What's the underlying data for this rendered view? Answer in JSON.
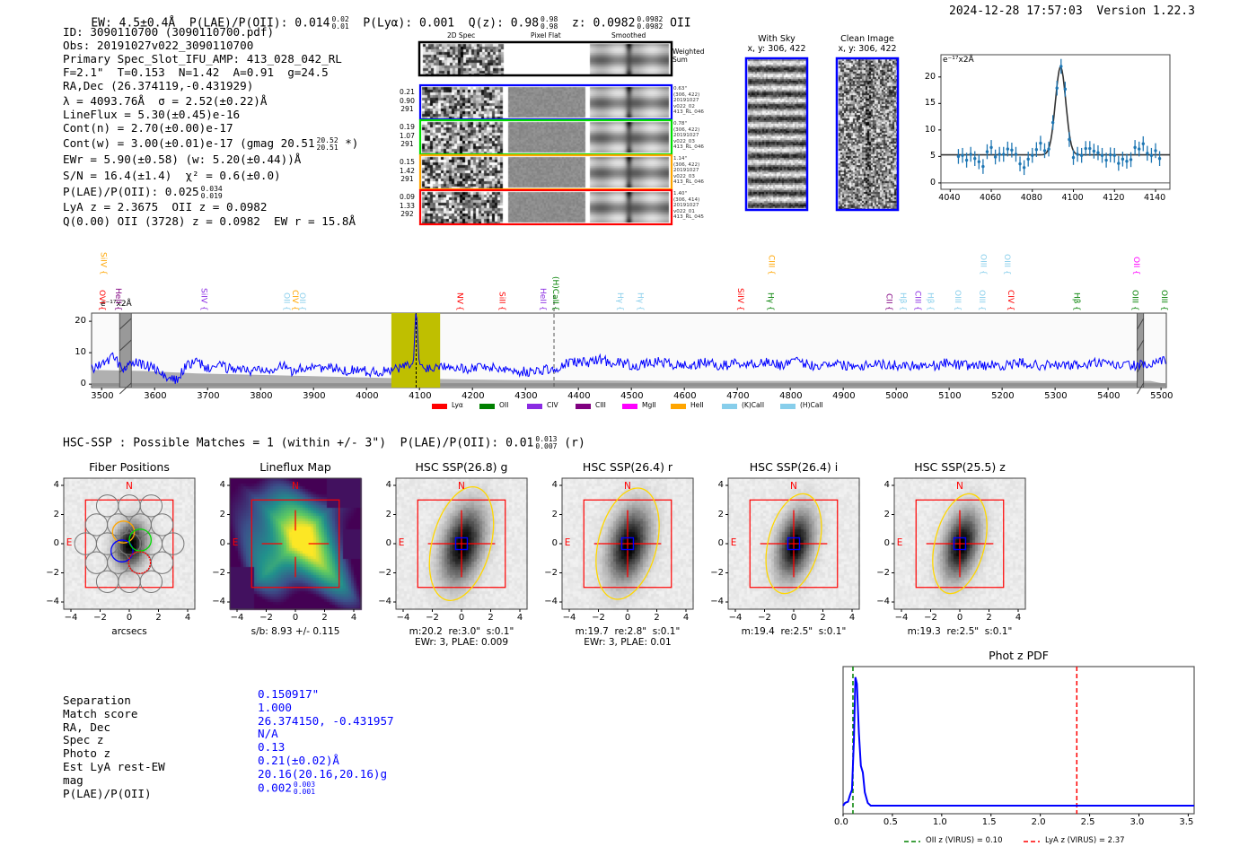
{
  "header": {
    "ew": "EW: 4.5±0.4Å",
    "plae": "P(LAE)/P(OII): 0.014",
    "plae_hi": "0.02",
    "plae_lo": "0.01",
    "plya": "P(Lyα): 0.001",
    "qz": "Q(z): 0.98",
    "qz_hi": "0.98",
    "qz_lo": "0.98",
    "z": "z: 0.0982",
    "z_hi": "0.0982",
    "z_lo": "0.0982",
    "z_line": "OII",
    "timestamp": "2024-12-28 17:57:03",
    "version": "Version 1.22.3"
  },
  "info": [
    {
      "text": "ID: 3090110700 (3090110700.pdf)"
    },
    {
      "text": "Obs: 20191027v022_3090110700"
    },
    {
      "text": "Primary Spec_Slot_IFU_AMP: 413_028_042_RL"
    },
    {
      "text": "F=2.1\"  T=0.153  N=1.42  A=0.91  g=24.5"
    },
    {
      "text": "RA,Dec (26.374119,-0.431929)"
    },
    {
      "text": "λ = 4093.76Å  σ = 2.52(±0.22)Å"
    },
    {
      "text": "LineFlux = 5.30(±0.45)e-16"
    },
    {
      "text": "Cont(n) = 2.70(±0.00)e-17"
    },
    {
      "text": "Cont(w) = 3.00(±0.01)e-17 (gmag 20.51",
      "hi": "20.52",
      "lo": "20.51",
      "tail": " *)"
    },
    {
      "text": "EWr = 5.90(±0.58) (w: 5.20(±0.44))Å"
    },
    {
      "text": "S/N = 16.4(±1.4)  χ² = 0.6(±0.0)"
    },
    {
      "text": "P(LAE)/P(OII): 0.025",
      "hi": "0.034",
      "lo": "0.019"
    },
    {
      "text": "LyA z = 2.3675  OII z = 0.0982"
    },
    {
      "text": "Q(0.00) OII (3728) z = 0.0982  EW r = 15.8Å"
    }
  ],
  "spec2d": {
    "headers": [
      "2D Spec",
      "Pixel Flat",
      "Smoothed"
    ],
    "weighted_label": "Weighted\nSum",
    "rows": [
      {
        "color": "#0000ff",
        "left": [
          "0.21",
          "0.90",
          "291"
        ],
        "right": [
          "0.63\"",
          "(306, 422)",
          "20191027",
          "v022_02",
          "413_RL_046"
        ]
      },
      {
        "color": "#00dd00",
        "left": [
          "0.19",
          "1.07",
          "291"
        ],
        "right": [
          "0.78\"",
          "(306, 422)",
          "20191027",
          "v022_03",
          "413_RL_046"
        ]
      },
      {
        "color": "#ffa500",
        "left": [
          "0.15",
          "1.42",
          "291"
        ],
        "right": [
          "1.14\"",
          "(306, 422)",
          "20191027",
          "v022_03",
          "413_RL_046"
        ]
      },
      {
        "color": "#ff0000",
        "left": [
          "0.09",
          "1.33",
          "292"
        ],
        "right": [
          "1.40\"",
          "(306, 414)",
          "20191027",
          "v022_01",
          "413_RL_045"
        ]
      }
    ]
  },
  "cutouts_top": [
    {
      "title": "With Sky",
      "subtitle": "x, y: 306, 422"
    },
    {
      "title": "Clean Image",
      "subtitle": "x, y: 306, 422"
    }
  ],
  "hsc_line": "HSC-SSP : Possible Matches = 1 (within +/- 3\")  P(LAE)/P(OII): 0.01",
  "hsc_hi": "0.013",
  "hsc_lo": "0.007",
  "hsc_tail": " (r)",
  "panels": [
    {
      "title": "Fiber Positions",
      "kind": "fibers",
      "notes": [
        "arcsecs"
      ]
    },
    {
      "title": "Lineflux Map",
      "kind": "flux",
      "notes": [
        "s/b: 8.93 +/- 0.115"
      ]
    },
    {
      "title": "HSC SSP(26.8) g",
      "kind": "img",
      "ell": [
        2.0,
        4.0,
        15
      ],
      "notes": [
        "m:20.2  re:3.0\"  s:0.1\"",
        "EWr: 3, PLAE: 0.009"
      ]
    },
    {
      "title": "HSC SSP(26.4) r",
      "kind": "img",
      "ell": [
        2.0,
        3.9,
        14
      ],
      "notes": [
        "m:19.7  re:2.8\"  s:0.1\"",
        "EWr: 3, PLAE: 0.01"
      ]
    },
    {
      "title": "HSC SSP(26.4) i",
      "kind": "img",
      "ell": [
        1.75,
        3.5,
        14
      ],
      "notes": [
        "m:19.4  re:2.5\"  s:0.1\""
      ]
    },
    {
      "title": "HSC SSP(25.5) z",
      "kind": "img",
      "ell": [
        1.7,
        3.5,
        14
      ],
      "notes": [
        "m:19.3  re:2.5\"  s:0.1\""
      ]
    }
  ],
  "compass": {
    "north": "N",
    "east": "E"
  },
  "match_table": [
    {
      "label": "Separation",
      "value": "0.150917\""
    },
    {
      "label": "Match score",
      "value": "1.000"
    },
    {
      "label": "RA, Dec",
      "value": "26.374150, -0.431957"
    },
    {
      "label": "Spec z",
      "value": "N/A"
    },
    {
      "label": "Photo z",
      "value": "0.13"
    },
    {
      "label": "Est LyA rest-EW",
      "value": "0.21(±0.02)Å"
    },
    {
      "label": "mag",
      "value": "20.16(20.16,20.16)g"
    },
    {
      "label": "P(LAE)/P(OII)",
      "value": "0.002",
      "hi": "0.003",
      "lo": "0.001"
    }
  ],
  "chart_data": [
    {
      "id": "line_fit",
      "type": "scatter",
      "title": "",
      "ylabel": "e⁻¹⁷x2Å",
      "xlim": [
        4035.5,
        4147
      ],
      "ylim": [
        -1.2,
        24.2
      ],
      "xticks": [
        4040,
        4060,
        4080,
        4100,
        4120,
        4140
      ],
      "yticks": [
        0,
        5,
        10,
        15,
        20
      ],
      "x": [
        4044,
        4046,
        4048,
        4050,
        4052,
        4054,
        4056,
        4058,
        4060,
        4062,
        4064,
        4066,
        4068,
        4070,
        4072,
        4074,
        4076,
        4078,
        4080,
        4082,
        4084,
        4086,
        4088,
        4090,
        4092,
        4094,
        4096,
        4098,
        4100,
        4102,
        4104,
        4106,
        4108,
        4110,
        4112,
        4114,
        4116,
        4118,
        4120,
        4122,
        4124,
        4126,
        4128,
        4130,
        4132,
        4134,
        4136,
        4138,
        4140,
        4142
      ],
      "y": [
        5.0,
        5.2,
        4.3,
        5.4,
        4.6,
        4.0,
        3.1,
        5.9,
        6.7,
        4.9,
        5.4,
        5.4,
        6.4,
        6.2,
        5.4,
        3.6,
        2.9,
        4.5,
        5.2,
        6.3,
        7.5,
        6.1,
        6.4,
        11.4,
        17.9,
        22.0,
        17.7,
        8.2,
        4.8,
        5.4,
        5.2,
        6.5,
        6.5,
        6.0,
        5.7,
        5.2,
        4.3,
        5.3,
        5.2,
        3.7,
        4.5,
        4.1,
        4.4,
        6.7,
        6.4,
        7.4,
        5.6,
        5.2,
        6.1,
        4.6
      ],
      "yerr": 1.4,
      "fit": {
        "mu": 4093.76,
        "sigma": 2.52,
        "amplitude": 16.6,
        "continuum": 5.3
      },
      "colors": {
        "points": "#1f77b4",
        "fit": "#333333"
      }
    },
    {
      "id": "full_spectrum",
      "type": "line",
      "ylabel": "e⁻¹⁷x2Å",
      "xlim": [
        3481,
        5510
      ],
      "ylim": [
        -1.1,
        22.6
      ],
      "xticks": [
        3500,
        3600,
        3700,
        3800,
        3900,
        4000,
        4100,
        4200,
        4300,
        4400,
        4500,
        4600,
        4700,
        4800,
        4900,
        5000,
        5100,
        5200,
        5300,
        5400,
        5500
      ],
      "yticks": [
        0,
        10,
        20
      ],
      "x_start": 3480,
      "x_step": 20,
      "flux": [
        5,
        6,
        9,
        5,
        7,
        6,
        5,
        2,
        1,
        6,
        7,
        5,
        6,
        5,
        5,
        4,
        5,
        5,
        6,
        4,
        5,
        6,
        5,
        5,
        4,
        5,
        4,
        4,
        4,
        5,
        6,
        6,
        5,
        6,
        6,
        5,
        5,
        6,
        5,
        5,
        4,
        4,
        4,
        5,
        4,
        7,
        7,
        7,
        8,
        7,
        7,
        6,
        6,
        7,
        7,
        6,
        6,
        6,
        7,
        6,
        6,
        7,
        6,
        7,
        7,
        6,
        7,
        7,
        6,
        6,
        7,
        6,
        6,
        6,
        7,
        6,
        6,
        6,
        6,
        6,
        6,
        7,
        6,
        6,
        6,
        6,
        6,
        6,
        7,
        6,
        6,
        6,
        6,
        6,
        6,
        7,
        6,
        6,
        6,
        6,
        6,
        7
      ],
      "err_start": 3480,
      "err_step": 100,
      "err": [
        4.5,
        4.2,
        3.4,
        3.0,
        2.6,
        2.2,
        1.8,
        1.5,
        1.3,
        1.2,
        1.1,
        1.0,
        1.0,
        1.0,
        1.0,
        1.0,
        1.0,
        1.0,
        1.0,
        1.0,
        1.0
      ],
      "highlight_band": [
        4047,
        4139
      ],
      "line_marker": 4093.76,
      "dashed_marker": 4354,
      "masked_bands": [
        [
          3534,
          3556
        ],
        [
          5455,
          5467
        ]
      ],
      "line_labels": [
        {
          "label": "SiIV",
          "w": 3502,
          "color": "#ffa500",
          "row": "upper"
        },
        {
          "label": "CIII",
          "w": 4763,
          "color": "#ffa500",
          "row": "upper"
        },
        {
          "label": "OIII",
          "w": 5163,
          "color": "#87ceeb",
          "row": "upper"
        },
        {
          "label": "OIII",
          "w": 5208,
          "color": "#87ceeb",
          "row": "upper"
        },
        {
          "label": "OII",
          "w": 5452,
          "color": "#ff00ff",
          "row": "upper"
        },
        {
          "label": "OVI",
          "w": 3500,
          "color": "#ff0000",
          "row": "lower"
        },
        {
          "label": "HeII",
          "w": 3530,
          "color": "#800080",
          "row": "lower"
        },
        {
          "label": "SiIV",
          "w": 3692,
          "color": "#8a2be2",
          "row": "lower"
        },
        {
          "label": "OII",
          "w": 3848,
          "color": "#87ceeb",
          "row": "lower"
        },
        {
          "label": "CIV",
          "w": 3864,
          "color": "#ffa500",
          "row": "lower"
        },
        {
          "label": "OII",
          "w": 3878,
          "color": "#87ceeb",
          "row": "lower"
        },
        {
          "label": "NV",
          "w": 4175,
          "color": "#ff0000",
          "row": "lower"
        },
        {
          "label": "SiII",
          "w": 4255,
          "color": "#ff0000",
          "row": "lower"
        },
        {
          "label": "HeII",
          "w": 4332,
          "color": "#8a2be2",
          "row": "lower"
        },
        {
          "label": "(H)CaII",
          "w": 4356,
          "color": "#008000",
          "row": "lower"
        },
        {
          "label": "Hγ",
          "w": 4478,
          "color": "#87ceeb",
          "row": "lower"
        },
        {
          "label": "Hγ",
          "w": 4516,
          "color": "#87ceeb",
          "row": "lower"
        },
        {
          "label": "SiIV",
          "w": 4705,
          "color": "#ff0000",
          "row": "lower"
        },
        {
          "label": "Hγ",
          "w": 4762,
          "color": "#008000",
          "row": "lower"
        },
        {
          "label": "CII",
          "w": 4985,
          "color": "#800080",
          "row": "lower"
        },
        {
          "label": "Hβ",
          "w": 5012,
          "color": "#87ceeb",
          "row": "lower"
        },
        {
          "label": "CIII",
          "w": 5040,
          "color": "#8a2be2",
          "row": "lower"
        },
        {
          "label": "Hβ",
          "w": 5063,
          "color": "#87ceeb",
          "row": "lower"
        },
        {
          "label": "OIII",
          "w": 5115,
          "color": "#87ceeb",
          "row": "lower"
        },
        {
          "label": "OIII",
          "w": 5161,
          "color": "#87ceeb",
          "row": "lower"
        },
        {
          "label": "CIV",
          "w": 5215,
          "color": "#ff0000",
          "row": "lower"
        },
        {
          "label": "Hβ",
          "w": 5340,
          "color": "#008000",
          "row": "lower"
        },
        {
          "label": "OIII",
          "w": 5450,
          "color": "#008000",
          "row": "lower"
        },
        {
          "label": "OIII",
          "w": 5505,
          "color": "#008000",
          "row": "lower"
        }
      ],
      "legend": [
        {
          "label": "Lyα",
          "color": "#ff0000"
        },
        {
          "label": "OII",
          "color": "#008000"
        },
        {
          "label": "CIV",
          "color": "#8a2be2"
        },
        {
          "label": "CIII",
          "color": "#800080"
        },
        {
          "label": "MgII",
          "color": "#ff00ff"
        },
        {
          "label": "HeII",
          "color": "#ffa500"
        },
        {
          "label": "(K)CaII",
          "color": "#87ceeb"
        },
        {
          "label": "(H)CaII",
          "color": "#87ceeb"
        }
      ],
      "colors": {
        "line": "#0000ff",
        "band": "#bfbf00",
        "error": "#b0b0b0"
      }
    },
    {
      "id": "phot_z_pdf",
      "type": "line",
      "title": "Phot z PDF",
      "xlim": [
        0,
        3.56
      ],
      "ylim": [
        0,
        1.05
      ],
      "xticks": [
        0.0,
        0.5,
        1.0,
        1.5,
        2.0,
        2.5,
        3.0,
        3.5
      ],
      "x": [
        0.0,
        0.02,
        0.05,
        0.07,
        0.09,
        0.11,
        0.125,
        0.14,
        0.16,
        0.18,
        0.2,
        0.22,
        0.25,
        0.28,
        0.35,
        3.56
      ],
      "y": [
        0.0,
        0.02,
        0.03,
        0.08,
        0.12,
        0.5,
        0.97,
        0.92,
        0.55,
        0.3,
        0.25,
        0.1,
        0.02,
        0.0,
        0.0,
        0.0
      ],
      "vlines": [
        {
          "z": 0.1,
          "color": "#008000",
          "label": "OII z (VIRUS) = 0.10"
        },
        {
          "z": 2.37,
          "color": "#ff0000",
          "label": "LyA z (VIRUS) = 2.37"
        }
      ],
      "colors": {
        "line": "#0000ff"
      }
    }
  ]
}
